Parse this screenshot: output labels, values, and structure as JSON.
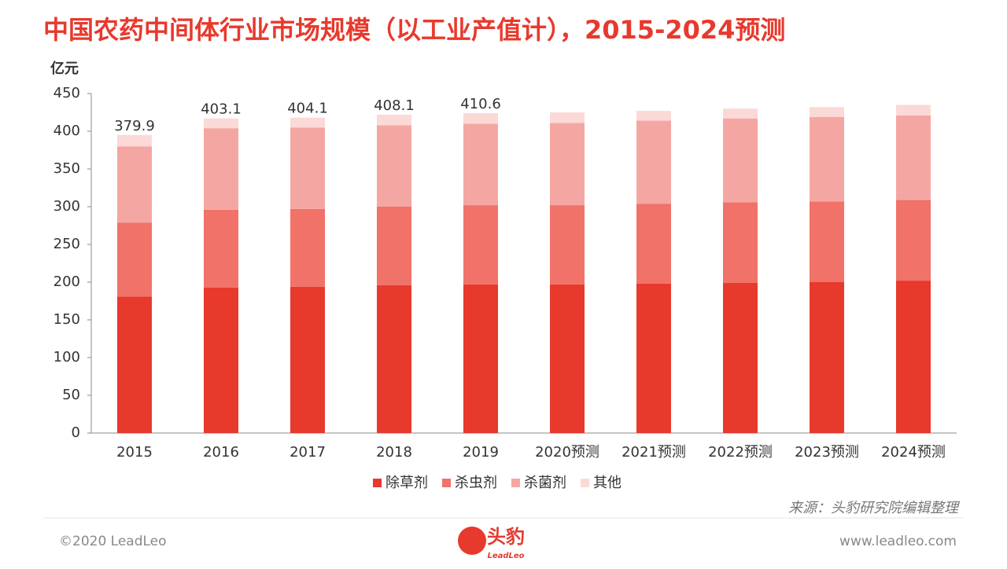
{
  "chart_data": {
    "type": "bar",
    "stacked": true,
    "title": "中国农药中间体行业市场规模（以工业产值计），2015-2024预测",
    "y_unit": "亿元",
    "categories": [
      "2015",
      "2016",
      "2017",
      "2018",
      "2019",
      "2020预测",
      "2021预测",
      "2022预测",
      "2023预测",
      "2024预测"
    ],
    "series": [
      {
        "name": "除草剂",
        "color": "#e8392d",
        "values": [
          181,
          193,
          194,
          196,
          197,
          197,
          198,
          199,
          200,
          202
        ]
      },
      {
        "name": "杀虫剂",
        "color": "#f07268",
        "values": [
          98,
          103,
          103,
          104,
          105,
          105,
          106,
          107,
          107,
          107
        ]
      },
      {
        "name": "杀菌剂",
        "color": "#f4a7a2",
        "values": [
          101,
          108,
          108,
          108,
          108,
          109,
          110,
          111,
          112,
          112
        ]
      },
      {
        "name": "其他",
        "color": "#fbd9d7",
        "values": [
          15,
          13,
          13,
          14,
          14,
          14,
          13,
          13,
          13,
          14
        ]
      }
    ],
    "total_labels": [
      "379.9",
      "403.1",
      "404.1",
      "408.1",
      "410.6"
    ],
    "ylim": [
      0,
      450
    ],
    "yticks": [
      0,
      50,
      100,
      150,
      200,
      250,
      300,
      350,
      400,
      450
    ],
    "legend": "bottom",
    "source": "来源：头豹研究院编辑整理"
  },
  "footer": {
    "copyright": "©2020 LeadLeo",
    "logo": "头豹",
    "logo_sub": "LeadLeo",
    "website": "www.leadleo.com"
  }
}
